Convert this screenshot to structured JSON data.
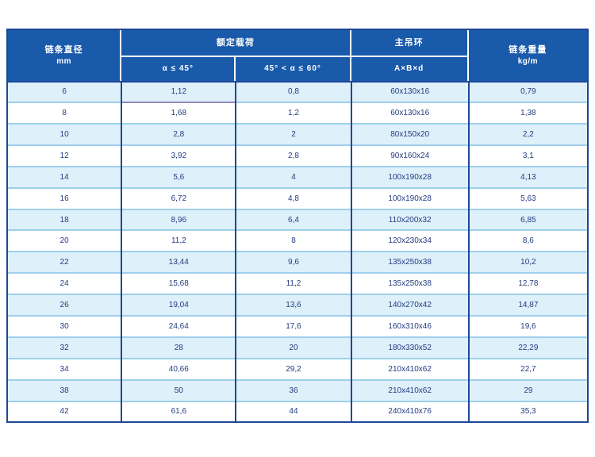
{
  "colors": {
    "header_bg": "#1a5aab",
    "border_dark": "#1d4897",
    "row_alt": "#def0fa",
    "row_plain": "#ffffff",
    "separator_light": "#9ecfec",
    "anomaly_line": "#9186bd",
    "data_text": "#243c80",
    "header_text": "#ffffff"
  },
  "table": {
    "header": {
      "diameter_line1": "链条直径",
      "diameter_line2": "mm",
      "rated_load": "额定载荷",
      "alpha_le_45": "α ≤ 45°",
      "alpha_45_60": "45° < α ≤ 60°",
      "main_ring": "主吊环",
      "ring_dims": "A×B×d",
      "weight_line1": "链条重量",
      "weight_line2": "kg/m"
    },
    "rows": [
      [
        "6",
        "1,12",
        "0,8",
        "60x130x16",
        "0,79"
      ],
      [
        "8",
        "1,68",
        "1,2",
        "60x130x16",
        "1,38"
      ],
      [
        "10",
        "2,8",
        "2",
        "80x150x20",
        "2,2"
      ],
      [
        "12",
        "3,92",
        "2,8",
        "90x160x24",
        "3,1"
      ],
      [
        "14",
        "5,6",
        "4",
        "100x190x28",
        "4,13"
      ],
      [
        "16",
        "6,72",
        "4,8",
        "100x190x28",
        "5,63"
      ],
      [
        "18",
        "8,96",
        "6,4",
        "110x200x32",
        "6,85"
      ],
      [
        "20",
        "11,2",
        "8",
        "120x230x34",
        "8,6"
      ],
      [
        "22",
        "13,44",
        "9,6",
        "135x250x38",
        "10,2"
      ],
      [
        "24",
        "15,68",
        "11,2",
        "135x250x38",
        "12,78"
      ],
      [
        "26",
        "19,04",
        "13,6",
        "140x270x42",
        "14,87"
      ],
      [
        "30",
        "24,64",
        "17,6",
        "160x310x46",
        "19,6"
      ],
      [
        "32",
        "28",
        "20",
        "180x330x52",
        "22,29"
      ],
      [
        "34",
        "40,66",
        "29,2",
        "210x410x62",
        "22,7"
      ],
      [
        "38",
        "50",
        "36",
        "210x410x62",
        "29"
      ],
      [
        "42",
        "61,6",
        "44",
        "240x410x76",
        "35,3"
      ]
    ],
    "anomaly_underline": {
      "row": 0,
      "col": 1,
      "color": "#9186bd"
    }
  }
}
